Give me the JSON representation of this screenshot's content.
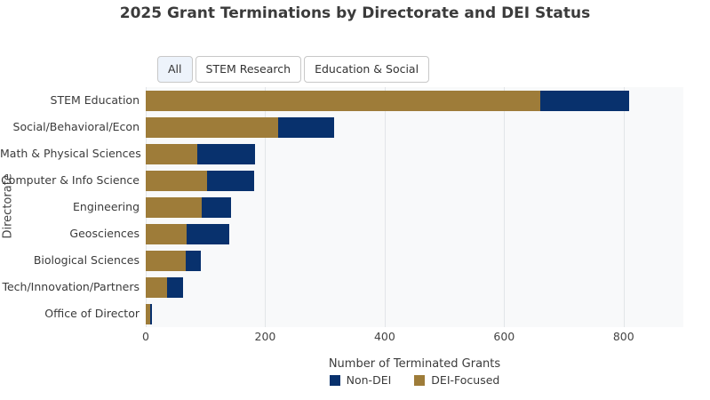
{
  "title": "2025 Grant Terminations by Directorate and DEI Status",
  "filters": {
    "buttons": [
      {
        "label": "All",
        "active": true
      },
      {
        "label": "STEM Research",
        "active": false
      },
      {
        "label": "Education & Social",
        "active": false
      }
    ]
  },
  "chart_data": {
    "type": "bar",
    "orientation": "horizontal",
    "stacked": true,
    "title": "2025 Grant Terminations by Directorate and DEI Status",
    "xlabel": "Number of Terminated Grants",
    "ylabel": "Directorate",
    "xlim": [
      0,
      900
    ],
    "xticks": [
      0,
      200,
      400,
      600,
      800
    ],
    "grid": true,
    "legend_position": "bottom",
    "categories": [
      "STEM Education",
      "Social/Behavioral/Econ",
      "Math & Physical Sciences",
      "Computer & Info Science",
      "Engineering",
      "Geosciences",
      "Biological Sciences",
      "Tech/Innovation/Partners",
      "Office of Director"
    ],
    "series": [
      {
        "name": "Non-DEI",
        "color": "#08316d",
        "values": [
          150,
          94,
          97,
          79,
          50,
          71,
          25,
          27,
          2
        ]
      },
      {
        "name": "DEI-Focused",
        "color": "#9e7c39",
        "values": [
          660,
          221,
          86,
          102,
          93,
          69,
          67,
          35,
          8
        ]
      }
    ],
    "stack_order": [
      "DEI-Focused",
      "Non-DEI"
    ]
  },
  "colors": {
    "non_dei": "#08316d",
    "dei_focused": "#9e7c39",
    "plot_background": "#f8f9fa",
    "gridline": "#e2e5e8",
    "active_button_bg": "#edf3fb"
  }
}
